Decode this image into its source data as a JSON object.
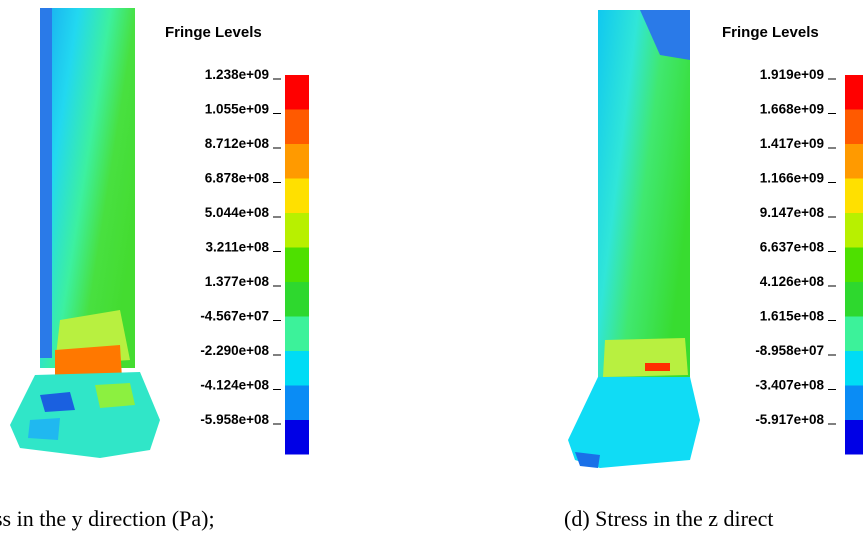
{
  "panels": [
    {
      "legend_title": "Fringe Levels",
      "levels": [
        "1.238e+09",
        "1.055e+09",
        "8.712e+08",
        "6.878e+08",
        "5.044e+08",
        "3.211e+08",
        "1.377e+08",
        "-4.567e+07",
        "-2.290e+08",
        "-4.124e+08",
        "-5.958e+08"
      ],
      "band_colors": [
        "#ff0000",
        "#ff5a00",
        "#ff9a00",
        "#ffe000",
        "#b8f000",
        "#4ee000",
        "#2ed82e",
        "#3cf29a",
        "#00dcf5",
        "#0a8cf5",
        "#0000e6"
      ],
      "caption": "ss in the y direction (Pa);"
    },
    {
      "legend_title": "Fringe Levels",
      "levels": [
        "1.919e+09",
        "1.668e+09",
        "1.417e+09",
        "1.166e+09",
        "9.147e+08",
        "6.637e+08",
        "4.126e+08",
        "1.615e+08",
        "-8.958e+07",
        "-3.407e+08",
        "-5.917e+08"
      ],
      "band_colors": [
        "#ff0000",
        "#ff5a00",
        "#ff9a00",
        "#ffe000",
        "#b8f000",
        "#4ee000",
        "#2ed82e",
        "#3cf29a",
        "#00dcf5",
        "#0a8cf5",
        "#0000e6"
      ],
      "caption": "(d) Stress in the z direct"
    }
  ]
}
